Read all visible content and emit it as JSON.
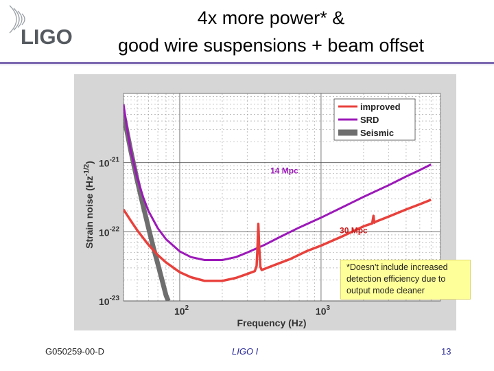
{
  "slide": {
    "title_line1": "4x more power* &",
    "title_line2": "good wire suspensions + beam offset",
    "logo_text": "LIGO",
    "footer_left": "G050259-00-D",
    "footer_center": "LIGO I",
    "footer_right": "13",
    "note": "*Doesn't include increased detection efficiency due to output mode cleaner",
    "colors": {
      "rule": "#7b68b0",
      "note_bg": "#ffff99"
    }
  },
  "chart_data": {
    "type": "line",
    "xlabel": "Frequency (Hz)",
    "ylabel": "Strain noise (Hz",
    "ylabel_sup": "-1/2",
    "ylabel_close": ")",
    "x_scale": "log",
    "y_scale": "log",
    "xlim": [
      40,
      7000
    ],
    "ylim": [
      1e-23,
      1e-20
    ],
    "x_ticks": [
      {
        "value": 100,
        "base": "10",
        "exp": "2"
      },
      {
        "value": 1000,
        "base": "10",
        "exp": "3"
      }
    ],
    "y_ticks": [
      {
        "value": 1e-21,
        "base": "10",
        "exp": "-21"
      },
      {
        "value": 1e-22,
        "base": "10",
        "exp": "-22"
      },
      {
        "value": 1e-23,
        "base": "10",
        "exp": "-23"
      }
    ],
    "grid": true,
    "legend": "top-right",
    "series": [
      {
        "name": "improved",
        "color": "#e8413c",
        "width": 3.5,
        "points": [
          [
            40,
            2.1e-22
          ],
          [
            45,
            1.45e-22
          ],
          [
            50,
            1.05e-22
          ],
          [
            60,
            6.5e-23
          ],
          [
            70,
            4.6e-23
          ],
          [
            80,
            3.6e-23
          ],
          [
            100,
            2.6e-23
          ],
          [
            120,
            2.2e-23
          ],
          [
            150,
            1.95e-23
          ],
          [
            200,
            1.95e-23
          ],
          [
            250,
            2.15e-23
          ],
          [
            300,
            2.45e-23
          ],
          [
            340,
            2.7e-23
          ],
          [
            350,
            3.2e-23
          ],
          [
            355,
            6e-23
          ],
          [
            360,
            1.3e-22
          ],
          [
            365,
            6e-23
          ],
          [
            372,
            3.1e-23
          ],
          [
            380,
            2.8e-23
          ],
          [
            450,
            3.2e-23
          ],
          [
            600,
            4e-23
          ],
          [
            800,
            5.3e-23
          ],
          [
            1000,
            6.3e-23
          ],
          [
            1400,
            8.5e-23
          ],
          [
            2000,
            1.2e-22
          ],
          [
            2300,
            1.32e-22
          ],
          [
            2350,
            1.7e-22
          ],
          [
            2380,
            1.35e-22
          ],
          [
            2400,
            1.38e-22
          ],
          [
            3000,
            1.65e-22
          ],
          [
            4000,
            2.1e-22
          ],
          [
            5000,
            2.5e-22
          ],
          [
            6000,
            2.9e-22
          ]
        ]
      },
      {
        "name": "SRD",
        "color": "#9b19b8",
        "width": 3,
        "points": [
          [
            40,
            7e-21
          ],
          [
            42,
            3.5e-21
          ],
          [
            45,
            1.5e-21
          ],
          [
            50,
            6e-22
          ],
          [
            55,
            3.2e-22
          ],
          [
            60,
            2e-22
          ],
          [
            70,
            1.12e-22
          ],
          [
            80,
            7.8e-23
          ],
          [
            100,
            5.2e-23
          ],
          [
            120,
            4.3e-23
          ],
          [
            150,
            3.9e-23
          ],
          [
            200,
            3.9e-23
          ],
          [
            250,
            4.3e-23
          ],
          [
            300,
            5e-23
          ],
          [
            400,
            6.5e-23
          ],
          [
            500,
            8.2e-23
          ],
          [
            700,
            1.15e-22
          ],
          [
            1000,
            1.6e-22
          ],
          [
            1500,
            2.4e-22
          ],
          [
            2000,
            3.2e-22
          ],
          [
            3000,
            4.7e-22
          ],
          [
            4000,
            6.3e-22
          ],
          [
            5000,
            7.8e-22
          ],
          [
            6000,
            9.4e-22
          ]
        ]
      },
      {
        "name": "Seismic",
        "color": "#6e6e6e",
        "width": 7,
        "points": [
          [
            40,
            5e-21
          ],
          [
            45,
            1.5e-21
          ],
          [
            50,
            5.5e-22
          ],
          [
            55,
            2.4e-22
          ],
          [
            60,
            1.15e-22
          ],
          [
            65,
            6e-23
          ],
          [
            70,
            3.4e-23
          ],
          [
            75,
            2e-23
          ],
          [
            80,
            1.2e-23
          ],
          [
            83,
            1e-23
          ]
        ]
      }
    ],
    "annotations": [
      {
        "text": "14 Mpc",
        "x": 550,
        "y": 7e-22,
        "color": "#9b19b8"
      },
      {
        "text": "30 Mpc",
        "x": 1700,
        "y": 9.5e-23,
        "color": "#c81e1e"
      }
    ]
  }
}
